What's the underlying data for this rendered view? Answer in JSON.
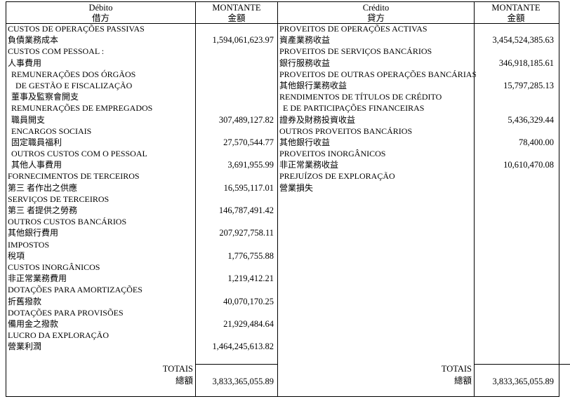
{
  "header": {
    "debit_label": "Débito",
    "debit_label_zh": "借方",
    "amount_label": "MONTANTE",
    "amount_label_zh": "金額",
    "credit_label": "Crédito",
    "credit_label_zh": "貸方"
  },
  "debit": {
    "rows": [
      {
        "text": "CUSTOS DE OPERAÇÕES PASSIVAS",
        "indent": 0,
        "value": ""
      },
      {
        "text": "負債業務成本",
        "indent": 0,
        "value": "1,594,061,623.97"
      },
      {
        "text": "CUSTOS COM PESSOAL :",
        "indent": 0,
        "value": ""
      },
      {
        "text": "人事費用",
        "indent": 0,
        "value": ""
      },
      {
        "text": "REMUNERAÇÕES DOS ÓRGÃOS",
        "indent": 1,
        "value": ""
      },
      {
        "text": "DE GESTÃO E FISCALIZAÇÃO",
        "indent": 2,
        "value": ""
      },
      {
        "text": "董事及監察會開支",
        "indent": 1,
        "value": ""
      },
      {
        "text": "REMUNERAÇÕES DE EMPREGADOS",
        "indent": 1,
        "value": ""
      },
      {
        "text": "職員開支",
        "indent": 1,
        "value": "307,489,127.82"
      },
      {
        "text": "ENCARGOS SOCIAIS",
        "indent": 1,
        "value": ""
      },
      {
        "text": "固定職員福利",
        "indent": 1,
        "value": "27,570,544.77"
      },
      {
        "text": "OUTROS CUSTOS COM O PESSOAL",
        "indent": 1,
        "value": ""
      },
      {
        "text": "其他人事費用",
        "indent": 1,
        "value": "3,691,955.99"
      },
      {
        "text": "FORNECIMENTOS DE TERCEIROS",
        "indent": 0,
        "value": ""
      },
      {
        "text": "第三 者作出之供應",
        "indent": 0,
        "value": "16,595,117.01"
      },
      {
        "text": "SERVIÇOS DE TERCEIROS",
        "indent": 0,
        "value": ""
      },
      {
        "text": "第三 者提供之勞務",
        "indent": 0,
        "value": "146,787,491.42"
      },
      {
        "text": "OUTROS CUSTOS BANCÁRIOS",
        "indent": 0,
        "value": ""
      },
      {
        "text": "其他銀行費用",
        "indent": 0,
        "value": "207,927,758.11"
      },
      {
        "text": "IMPOSTOS",
        "indent": 0,
        "value": ""
      },
      {
        "text": "稅項",
        "indent": 0,
        "value": "1,776,755.88"
      },
      {
        "text": "CUSTOS INORGÂNICOS",
        "indent": 0,
        "value": ""
      },
      {
        "text": "非正常業務費用",
        "indent": 0,
        "value": "1,219,412.21"
      },
      {
        "text": "DOTAÇÕES PARA AMORTIZAÇÕES",
        "indent": 0,
        "value": ""
      },
      {
        "text": "折舊撥款",
        "indent": 0,
        "value": "40,070,170.25"
      },
      {
        "text": "DOTAÇÕES PARA PROVISÕES",
        "indent": 0,
        "value": ""
      },
      {
        "text": "備用金之撥款",
        "indent": 0,
        "value": "21,929,484.64"
      },
      {
        "text": "LUCRO DA EXPLORAÇÃO",
        "indent": 0,
        "value": ""
      },
      {
        "text": "營業利潤",
        "indent": 0,
        "value": "1,464,245,613.82"
      }
    ],
    "total_label": "TOTAIS",
    "total_label_zh": "總額",
    "total_value": "3,833,365,055.89"
  },
  "credit": {
    "rows": [
      {
        "text": "PROVEITOS DE OPERAÇÕES ACTIVAS",
        "indent": 0,
        "value": ""
      },
      {
        "text": "資產業務收益",
        "indent": 0,
        "value": "3,454,524,385.63"
      },
      {
        "text": "PROVEITOS DE SERVIÇOS BANCÁRIOS",
        "indent": 0,
        "value": ""
      },
      {
        "text": "銀行服務收益",
        "indent": 0,
        "value": "346,918,185.61"
      },
      {
        "text": "PROVEITOS DE OUTRAS OPERAÇÕES BANCÁRIAS",
        "indent": 0,
        "value": ""
      },
      {
        "text": "其他銀行業務收益",
        "indent": 0,
        "value": "15,797,285.13"
      },
      {
        "text": "RENDIMENTOS DE TÍTULOS DE CRÉDITO",
        "indent": 0,
        "value": ""
      },
      {
        "text": "E DE PARTICIPAÇÕES FINANCEIRAS",
        "indent": 1,
        "value": ""
      },
      {
        "text": "證券及財務投資收益",
        "indent": 0,
        "value": "5,436,329.44"
      },
      {
        "text": "OUTROS PROVEITOS BANCÁRIOS",
        "indent": 0,
        "value": ""
      },
      {
        "text": "其他銀行收益",
        "indent": 0,
        "value": "78,400.00"
      },
      {
        "text": "PROVEITOS INORGÂNICOS",
        "indent": 0,
        "value": ""
      },
      {
        "text": "非正常業務收益",
        "indent": 0,
        "value": "10,610,470.08"
      },
      {
        "text": "PREJUÍZOS DE EXPLORAÇÃO",
        "indent": 0,
        "value": ""
      },
      {
        "text": "營業損失",
        "indent": 0,
        "value": ""
      }
    ],
    "total_label": "TOTAIS",
    "total_label_zh": "總額",
    "total_value": "3,833,365,055.89"
  }
}
